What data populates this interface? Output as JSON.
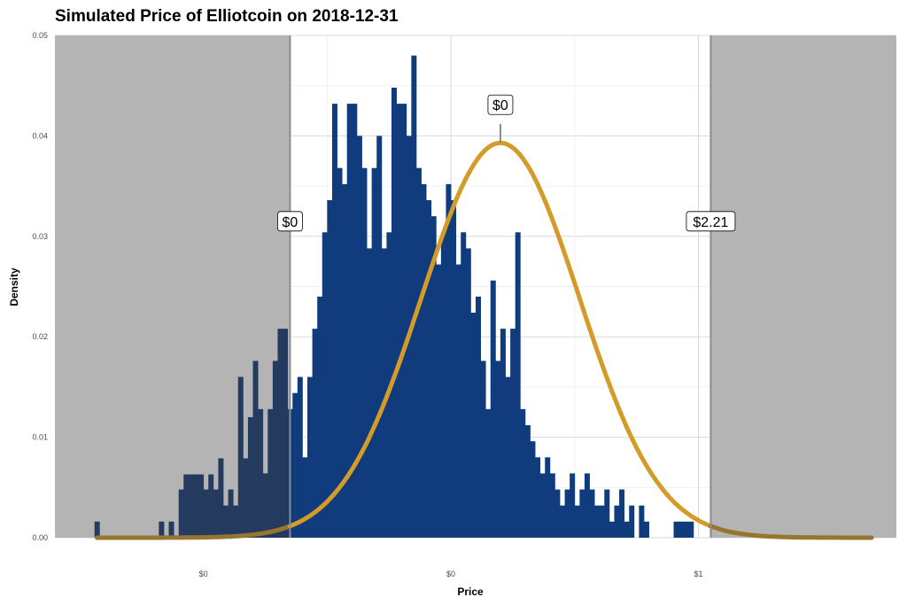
{
  "chart_data": {
    "type": "bar",
    "title": "Simulated Price of Elliotcoin on 2018-12-31",
    "xlabel": "Price",
    "ylabel": "Density",
    "ylim": [
      0,
      0.05
    ],
    "y_ticks": [
      "0.00",
      "0.01",
      "0.02",
      "0.03",
      "0.04",
      "0.05"
    ],
    "x_ticks": [
      {
        "value": -0.5,
        "label": "$0"
      },
      {
        "value": 0.0,
        "label": "$0"
      },
      {
        "value": 0.5,
        "label": "$1"
      }
    ],
    "xlim": [
      -0.8,
      0.9
    ],
    "grid": true,
    "shaded_outside": [
      -0.325,
      0.525
    ],
    "bin_width": 0.01,
    "histogram": {
      "x_start": -0.72,
      "values": [
        0.0016,
        0,
        0,
        0,
        0,
        0,
        0,
        0,
        0,
        0,
        0,
        0,
        0,
        0.0016,
        0,
        0.0016,
        0,
        0.0048,
        0.0063,
        0.0063,
        0.0063,
        0.0063,
        0.0048,
        0.0063,
        0.0048,
        0.0079,
        0.0032,
        0.0048,
        0.0032,
        0.016,
        0.0079,
        0.012,
        0.0176,
        0.0128,
        0.0064,
        0.0128,
        0.0176,
        0.0208,
        0.0208,
        0.0128,
        0.0144,
        0.016,
        0.008,
        0.016,
        0.0208,
        0.024,
        0.0304,
        0.0336,
        0.0432,
        0.0368,
        0.0352,
        0.0432,
        0.0432,
        0.04,
        0.0368,
        0.0288,
        0.0368,
        0.04,
        0.0288,
        0.0304,
        0.0448,
        0.0432,
        0.0432,
        0.04,
        0.048,
        0.0368,
        0.0352,
        0.0336,
        0.032,
        0.0272,
        0.0304,
        0.0352,
        0.0336,
        0.0272,
        0.0304,
        0.0288,
        0.0224,
        0.024,
        0.0176,
        0.0128,
        0.0256,
        0.0176,
        0.0208,
        0.016,
        0.0208,
        0.0304,
        0.0128,
        0.0112,
        0.0096,
        0.008,
        0.0064,
        0.008,
        0.0064,
        0.0048,
        0.0032,
        0.0048,
        0.0064,
        0.0032,
        0.0048,
        0.0064,
        0.0048,
        0.0032,
        0.0032,
        0.0048,
        0.0016,
        0.0032,
        0.0048,
        0.0016,
        0.0032,
        0,
        0.0032,
        0.0016,
        0,
        0,
        0,
        0,
        0,
        0.0016,
        0.0016,
        0.0016,
        0.0016
      ]
    },
    "density_curve": {
      "type": "normal",
      "mean": 0.1,
      "sd": 0.16,
      "peak": 0.0393
    },
    "annotations": [
      {
        "x": -0.325,
        "y": 0.0315,
        "label": "$0"
      },
      {
        "x": 0.1,
        "y": 0.0431,
        "label": "$0"
      },
      {
        "x": 0.525,
        "y": 0.0315,
        "label": "$2.21"
      }
    ],
    "colors": {
      "bars": "#103b7d",
      "bars_shaded": "#243a5e",
      "curve": "#d39b27",
      "curve_shaded": "#977430",
      "shade": "#a6a6a6",
      "grid": "#d9d9d9"
    }
  }
}
